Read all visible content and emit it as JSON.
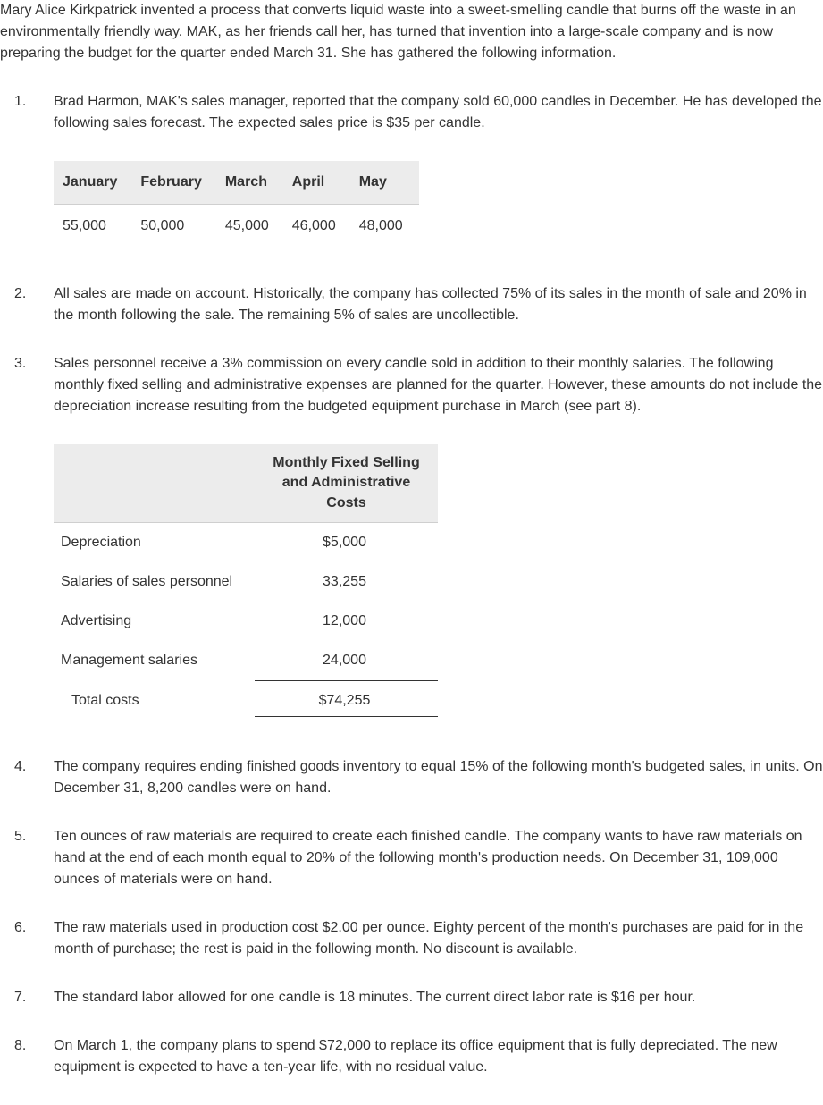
{
  "intro": "Mary Alice Kirkpatrick invented a process that converts liquid waste into a sweet-smelling candle that burns off the waste in an environmentally friendly way. MAK, as her friends call her, has turned that invention into a large-scale company and is now preparing the budget for the quarter ended March 31. She has gathered the following information.",
  "items": {
    "i1": {
      "num": "1.",
      "text": "Brad Harmon, MAK's sales manager, reported that the company sold 60,000 candles in December. He has developed the following sales forecast. The expected sales price is $35 per candle."
    },
    "i2": {
      "num": "2.",
      "text": "All sales are made on account. Historically, the company has collected 75% of its sales in the month of sale and 20% in the month following the sale. The remaining 5% of sales are uncollectible."
    },
    "i3": {
      "num": "3.",
      "text": "Sales personnel receive a 3% commission on every candle sold in addition to their monthly salaries. The following monthly fixed selling and administrative expenses are planned for the quarter. However, these amounts do not include the depreciation increase resulting from the budgeted equipment purchase in March (see part 8)."
    },
    "i4": {
      "num": "4.",
      "text": "The company requires ending finished goods inventory to equal 15% of the following month's budgeted sales, in units. On December 31, 8,200 candles were on hand."
    },
    "i5": {
      "num": "5.",
      "text": "Ten ounces of raw materials are required to create each finished candle. The company wants to have raw materials on hand at the end of each month equal to 20% of the following month's production needs. On December 31, 109,000 ounces of materials were on hand."
    },
    "i6": {
      "num": "6.",
      "text": "The raw materials used in production cost $2.00 per ounce. Eighty percent of the month's purchases are paid for in the month of purchase; the rest is paid in the following month. No discount is available."
    },
    "i7": {
      "num": "7.",
      "text": "The standard labor allowed for one candle is 18 minutes. The current direct labor rate is $16 per hour."
    },
    "i8": {
      "num": "8.",
      "text": "On March 1, the company plans to spend $72,000 to replace its office equipment that is fully depreciated. The new equipment is expected to have a ten-year life, with no residual value."
    }
  },
  "salesTable": {
    "headers": {
      "h1": "January",
      "h2": "February",
      "h3": "March",
      "h4": "April",
      "h5": "May"
    },
    "values": {
      "v1": "55,000",
      "v2": "50,000",
      "v3": "45,000",
      "v4": "46,000",
      "v5": "48,000"
    },
    "style": {
      "header_bg": "#ececec",
      "border_color": "#cfcfcf",
      "fontsize": 16
    }
  },
  "costsTable": {
    "header": "Monthly Fixed Selling and Administrative Costs",
    "rows": {
      "r1": {
        "label": "Depreciation",
        "value": "$5,000"
      },
      "r2": {
        "label": "Salaries of sales personnel",
        "value": "33,255"
      },
      "r3": {
        "label": "Advertising",
        "value": "12,000"
      },
      "r4": {
        "label": "Management salaries",
        "value": "24,000"
      },
      "total": {
        "label": "Total costs",
        "value": "$74,255"
      }
    },
    "style": {
      "header_bg": "#ececec",
      "border_color": "#cfcfcf",
      "rule_color": "#333333",
      "fontsize": 16
    }
  },
  "colors": {
    "text": "#333333",
    "background": "#ffffff"
  }
}
